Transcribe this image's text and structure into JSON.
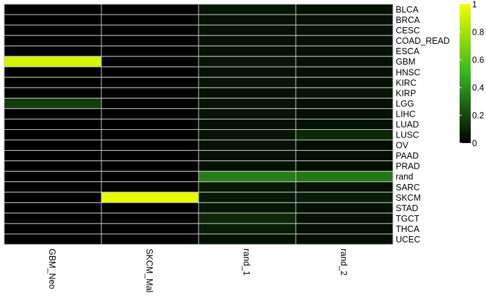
{
  "chart_data": {
    "type": "heatmap",
    "columns": [
      "GBM_Neo",
      "SKCM_Mal",
      "rand_1",
      "rand_2"
    ],
    "rows": [
      "BLCA",
      "BRCA",
      "CESC",
      "COAD_READ",
      "ESCA",
      "GBM",
      "HNSC",
      "KIRC",
      "KIRP",
      "LGG",
      "LIHC",
      "LUAD",
      "LUSC",
      "OV",
      "PAAD",
      "PRAD",
      "rand",
      "SARC",
      "SKCM",
      "STAD",
      "TGCT",
      "THCA",
      "UCEC"
    ],
    "values": [
      [
        0.0,
        0.0,
        0.06,
        0.05
      ],
      [
        0.0,
        0.0,
        0.05,
        0.05
      ],
      [
        0.0,
        0.0,
        0.05,
        0.05
      ],
      [
        0.0,
        0.0,
        0.05,
        0.05
      ],
      [
        0.0,
        0.0,
        0.05,
        0.05
      ],
      [
        0.92,
        0.0,
        0.06,
        0.05
      ],
      [
        0.0,
        0.0,
        0.05,
        0.05
      ],
      [
        0.0,
        0.0,
        0.06,
        0.05
      ],
      [
        0.0,
        0.0,
        0.05,
        0.06
      ],
      [
        0.17,
        0.0,
        0.06,
        0.05
      ],
      [
        0.0,
        0.0,
        0.06,
        0.05
      ],
      [
        0.0,
        0.0,
        0.05,
        0.05
      ],
      [
        0.0,
        0.0,
        0.06,
        0.11
      ],
      [
        0.0,
        0.0,
        0.05,
        0.04
      ],
      [
        0.0,
        0.0,
        0.05,
        0.04
      ],
      [
        0.0,
        0.0,
        0.05,
        0.04
      ],
      [
        0.0,
        0.0,
        0.35,
        0.33
      ],
      [
        0.0,
        0.0,
        0.07,
        0.05
      ],
      [
        0.0,
        0.97,
        0.07,
        0.08
      ],
      [
        0.0,
        0.0,
        0.06,
        0.05
      ],
      [
        0.0,
        0.0,
        0.11,
        0.05
      ],
      [
        0.0,
        0.0,
        0.08,
        0.04
      ],
      [
        0.0,
        0.0,
        0.05,
        0.04
      ]
    ],
    "scale": {
      "min": 0,
      "max": 1,
      "ticks": [
        0,
        0.2,
        0.4,
        0.6,
        0.8,
        1
      ],
      "tick_labels": [
        "0",
        "0.2",
        "0.4",
        "0.6",
        "0.8",
        "1"
      ],
      "stops": [
        {
          "value": 0,
          "color": "#000000"
        },
        {
          "value": 0.5,
          "color": "#35b421"
        },
        {
          "value": 1,
          "color": "#f2ff00"
        }
      ]
    },
    "cell_border_color": "#c8c8c8",
    "legend_placement": "right"
  }
}
